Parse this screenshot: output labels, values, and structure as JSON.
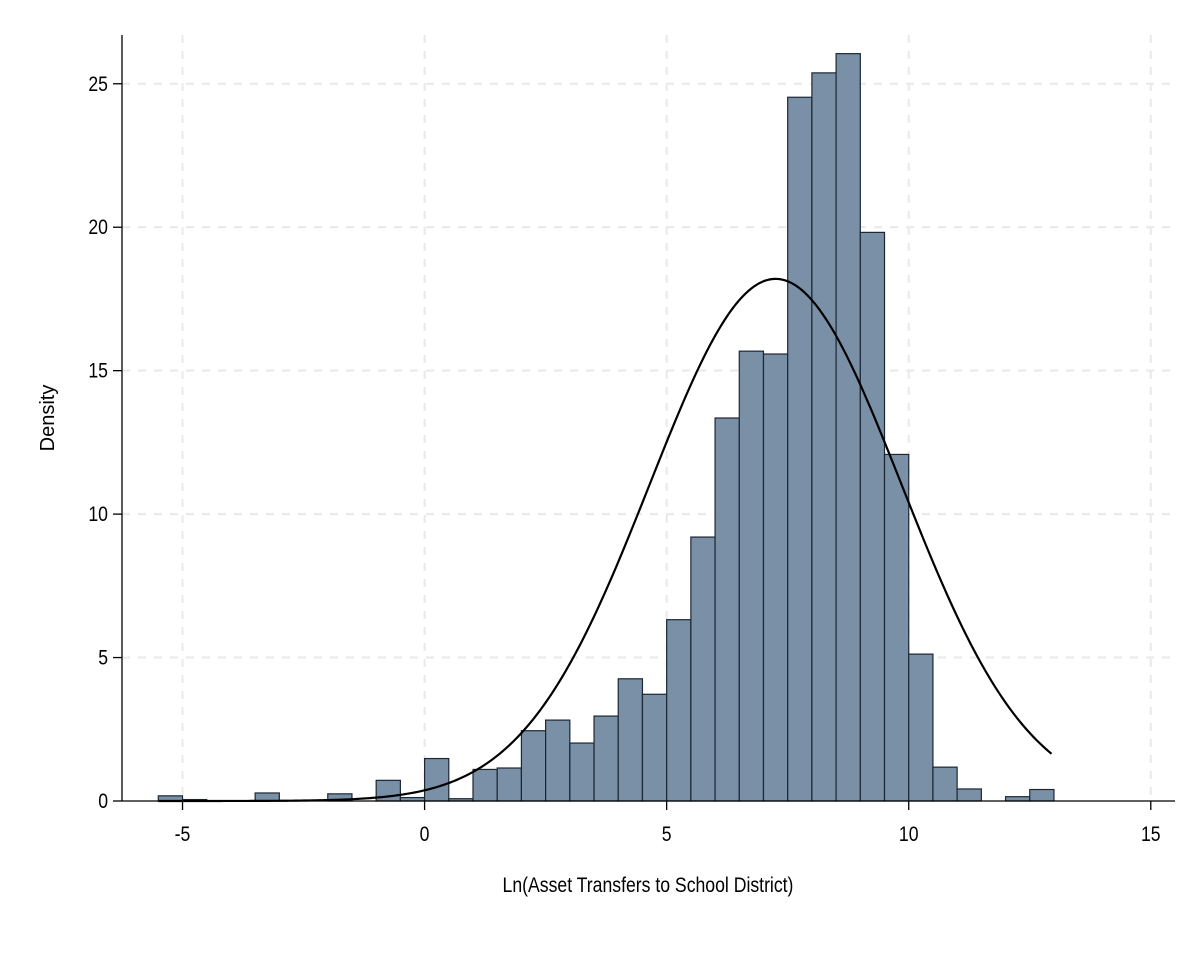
{
  "chart_data": {
    "type": "bar",
    "subtype": "histogram-with-normal-density-overlay",
    "xlabel": "Ln(Asset Transfers to School District)",
    "ylabel": "Density",
    "xlim": [
      -6.25,
      15.5
    ],
    "ylim": [
      0,
      26.7
    ],
    "x_ticks": [
      -5,
      0,
      5,
      10,
      15
    ],
    "x_tick_labels": [
      "-5",
      "0",
      "5",
      "10",
      "15"
    ],
    "y_ticks": [
      0,
      5,
      10,
      15,
      20,
      25
    ],
    "y_tick_labels": [
      "0",
      "5",
      "10",
      "15",
      "20",
      "25"
    ],
    "grid": true,
    "bin_width": 0.5,
    "bins": [
      {
        "x0": -5.5,
        "x1": -5.0,
        "value": 0.18
      },
      {
        "x0": -5.0,
        "x1": -4.5,
        "value": 0.05
      },
      {
        "x0": -3.5,
        "x1": -3.0,
        "value": 0.28
      },
      {
        "x0": -2.0,
        "x1": -1.5,
        "value": 0.25
      },
      {
        "x0": -1.0,
        "x1": -0.5,
        "value": 0.72
      },
      {
        "x0": -0.5,
        "x1": 0.0,
        "value": 0.12
      },
      {
        "x0": 0.0,
        "x1": 0.5,
        "value": 1.48
      },
      {
        "x0": 0.5,
        "x1": 1.0,
        "value": 0.08
      },
      {
        "x0": 1.0,
        "x1": 1.5,
        "value": 1.1
      },
      {
        "x0": 1.5,
        "x1": 2.0,
        "value": 1.15
      },
      {
        "x0": 2.0,
        "x1": 2.5,
        "value": 2.45
      },
      {
        "x0": 2.5,
        "x1": 3.0,
        "value": 2.82
      },
      {
        "x0": 3.0,
        "x1": 3.5,
        "value": 2.02
      },
      {
        "x0": 3.5,
        "x1": 4.0,
        "value": 2.96
      },
      {
        "x0": 4.0,
        "x1": 4.5,
        "value": 4.26
      },
      {
        "x0": 4.5,
        "x1": 5.0,
        "value": 3.72
      },
      {
        "x0": 5.0,
        "x1": 5.5,
        "value": 6.32
      },
      {
        "x0": 5.5,
        "x1": 6.0,
        "value": 9.2
      },
      {
        "x0": 6.0,
        "x1": 6.5,
        "value": 13.35
      },
      {
        "x0": 6.5,
        "x1": 7.0,
        "value": 15.68
      },
      {
        "x0": 7.0,
        "x1": 7.5,
        "value": 15.58
      },
      {
        "x0": 7.5,
        "x1": 8.0,
        "value": 24.53
      },
      {
        "x0": 8.0,
        "x1": 8.5,
        "value": 25.38
      },
      {
        "x0": 8.5,
        "x1": 9.0,
        "value": 26.05
      },
      {
        "x0": 9.0,
        "x1": 9.5,
        "value": 19.82
      },
      {
        "x0": 9.5,
        "x1": 10.0,
        "value": 12.08
      },
      {
        "x0": 10.0,
        "x1": 10.5,
        "value": 5.12
      },
      {
        "x0": 10.5,
        "x1": 11.0,
        "value": 1.18
      },
      {
        "x0": 11.0,
        "x1": 11.5,
        "value": 0.42
      },
      {
        "x0": 12.0,
        "x1": 12.5,
        "value": 0.15
      },
      {
        "x0": 12.5,
        "x1": 13.0,
        "value": 0.4
      }
    ],
    "density_curve": {
      "type": "normal",
      "mean": 7.25,
      "sd": 2.6,
      "peak": 18.2,
      "x_range": [
        -5.5,
        12.95
      ]
    },
    "colors": {
      "bar_fill": "#7990a6",
      "bar_stroke": "#1c2733",
      "curve": "#000000",
      "grid": "#e9e9e9"
    }
  }
}
